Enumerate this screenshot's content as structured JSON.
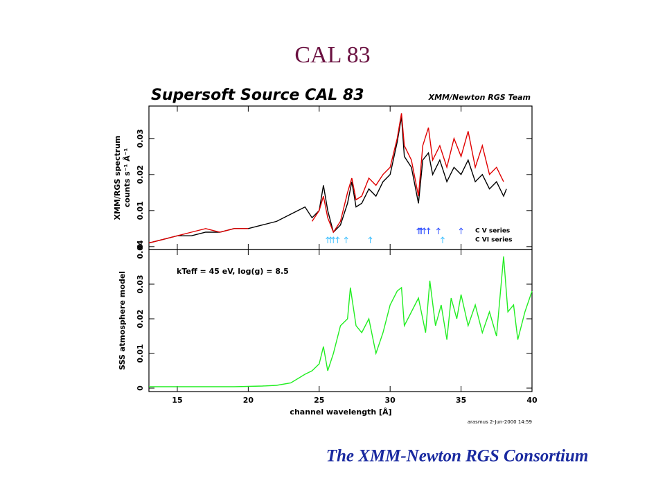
{
  "slide_title": "CAL 83",
  "footer": "The XMM-Newton RGS Consortium",
  "stamp": "arasmus   2-Jun-2000 14:59",
  "chart_data": [
    {
      "type": "line",
      "title": "Supersoft Source CAL 83",
      "credit": "XMM/Newton RGS Team",
      "ylabel": [
        "XMM/RGS spectrum",
        "counts s⁻¹ Å⁻¹"
      ],
      "xlim": [
        13,
        40
      ],
      "ylim": [
        -0.0008,
        0.039
      ],
      "yticks": [
        0,
        0.01,
        0.02,
        0.03
      ],
      "series": [
        {
          "name": "black",
          "color": "#000000",
          "x": [
            13,
            14,
            15,
            16,
            17,
            18,
            19,
            20,
            21,
            22,
            23,
            24,
            24.5,
            25,
            25.3,
            25.6,
            26,
            26.5,
            27,
            27.3,
            27.6,
            28,
            28.5,
            29,
            29.5,
            30,
            30.5,
            30.8,
            31,
            31.5,
            32,
            32.3,
            32.7,
            33,
            33.5,
            34,
            34.5,
            35,
            35.5,
            36,
            36.5,
            37,
            37.5,
            38,
            38.2
          ],
          "values": [
            0.001,
            0.002,
            0.003,
            0.003,
            0.004,
            0.004,
            0.005,
            0.005,
            0.006,
            0.007,
            0.009,
            0.011,
            0.008,
            0.01,
            0.017,
            0.01,
            0.004,
            0.006,
            0.012,
            0.018,
            0.011,
            0.012,
            0.016,
            0.014,
            0.018,
            0.02,
            0.029,
            0.036,
            0.025,
            0.022,
            0.012,
            0.024,
            0.026,
            0.02,
            0.024,
            0.018,
            0.022,
            0.02,
            0.024,
            0.018,
            0.02,
            0.016,
            0.018,
            0.014,
            0.016
          ]
        },
        {
          "name": "red",
          "color": "#e00000",
          "x": [
            13,
            14,
            15,
            16,
            17,
            18,
            19,
            20,
            21,
            22,
            23,
            24,
            24.5,
            25,
            25.3,
            25.6,
            26,
            26.5,
            27,
            27.3,
            27.6,
            28,
            28.5,
            29,
            29.5,
            30,
            30.5,
            30.8,
            31,
            31.5,
            32,
            32.3,
            32.7,
            33,
            33.5,
            34,
            34.5,
            35,
            35.5,
            36,
            36.5,
            37,
            37.5,
            38
          ],
          "values": [
            0.001,
            0.002,
            0.003,
            0.004,
            0.005,
            0.004,
            0.005,
            0.005,
            null,
            null,
            null,
            null,
            0.007,
            0.01,
            0.014,
            0.008,
            0.004,
            0.007,
            0.015,
            0.019,
            0.013,
            0.014,
            0.019,
            0.017,
            0.02,
            0.022,
            0.03,
            0.037,
            0.028,
            0.024,
            0.014,
            0.028,
            0.033,
            0.024,
            0.028,
            0.022,
            0.03,
            0.025,
            0.032,
            0.022,
            0.028,
            0.02,
            0.022,
            0.018
          ]
        }
      ],
      "markers": [
        {
          "name": "C V series",
          "color": "#3050ff",
          "x": [
            32.0,
            32.1,
            32.2,
            32.4,
            32.7,
            33.4,
            35.0
          ]
        },
        {
          "name": "C VI series",
          "color": "#40c0ff",
          "x": [
            25.6,
            25.8,
            26.0,
            26.3,
            26.9,
            28.6,
            33.7
          ]
        }
      ]
    },
    {
      "type": "line",
      "annotation": "kTeff = 45 eV, log(g) = 8.5",
      "ylabel": [
        "SSS atmosphere model"
      ],
      "xlabel": "channel wavelength [Å]",
      "xlim": [
        13,
        40
      ],
      "xticks": [
        15,
        20,
        25,
        30,
        35,
        40
      ],
      "ylim": [
        -0.001,
        0.04
      ],
      "yticks": [
        0,
        0.01,
        0.02,
        0.03,
        0.04
      ],
      "series": [
        {
          "name": "model",
          "color": "#22ee22",
          "x": [
            13,
            15,
            17,
            19,
            21,
            22,
            23,
            24,
            24.5,
            25,
            25.3,
            25.6,
            26,
            26.5,
            27,
            27.2,
            27.6,
            28,
            28.5,
            29,
            29.5,
            30,
            30.5,
            30.8,
            31,
            31.5,
            32,
            32.5,
            32.8,
            33.2,
            33.6,
            34,
            34.3,
            34.7,
            35,
            35.5,
            36,
            36.5,
            37,
            37.5,
            38,
            38.3,
            38.7,
            39,
            39.5,
            40
          ],
          "values": [
            0.0004,
            0.0004,
            0.0004,
            0.0004,
            0.0006,
            0.0008,
            0.0015,
            0.004,
            0.005,
            0.007,
            0.012,
            0.005,
            0.01,
            0.018,
            0.02,
            0.029,
            0.018,
            0.016,
            0.02,
            0.01,
            0.016,
            0.024,
            0.028,
            0.029,
            0.018,
            0.022,
            0.026,
            0.016,
            0.031,
            0.018,
            0.024,
            0.014,
            0.026,
            0.02,
            0.027,
            0.018,
            0.024,
            0.016,
            0.022,
            0.015,
            0.038,
            0.022,
            0.024,
            0.014,
            0.022,
            0.028
          ]
        }
      ]
    }
  ]
}
